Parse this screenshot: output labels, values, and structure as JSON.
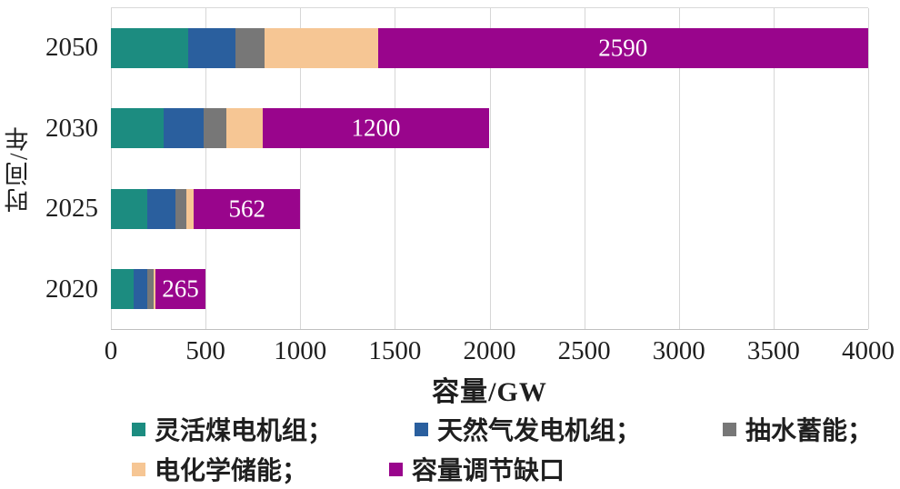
{
  "chart_data": {
    "type": "bar",
    "orientation": "horizontal",
    "stacked": true,
    "xlabel": "容量/GW",
    "ylabel": "时间/年",
    "categories": [
      "2050",
      "2030",
      "2025",
      "2020"
    ],
    "series": [
      {
        "name": "灵活煤电机组",
        "color": "#1C8C80",
        "values": [
          410,
          280,
          190,
          120
        ]
      },
      {
        "name": "天然气发电机组",
        "color": "#2A5F9E",
        "values": [
          250,
          210,
          150,
          70
        ]
      },
      {
        "name": "抽水蓄能",
        "color": "#777777",
        "values": [
          150,
          120,
          60,
          35
        ]
      },
      {
        "name": "电化学储能",
        "color": "#F6C694",
        "values": [
          600,
          190,
          38,
          10
        ]
      },
      {
        "name": "容量调节缺口",
        "color": "#99058C",
        "values": [
          2590,
          1200,
          562,
          265
        ],
        "data_labels": [
          "2590",
          "1200",
          "562",
          "265"
        ]
      }
    ],
    "x_ticks": [
      0,
      500,
      1000,
      1500,
      2000,
      2500,
      3000,
      3500,
      4000
    ],
    "xlim": [
      0,
      4000
    ],
    "grid": "vertical",
    "legend_position": "bottom",
    "legend_labels": [
      "灵活煤电机组；",
      "天然气发电机组；",
      "抽水蓄能；",
      "电化学储能；",
      "容量调节缺口"
    ],
    "legend_rows": [
      [
        0,
        1,
        2
      ],
      [
        3,
        4
      ]
    ]
  }
}
